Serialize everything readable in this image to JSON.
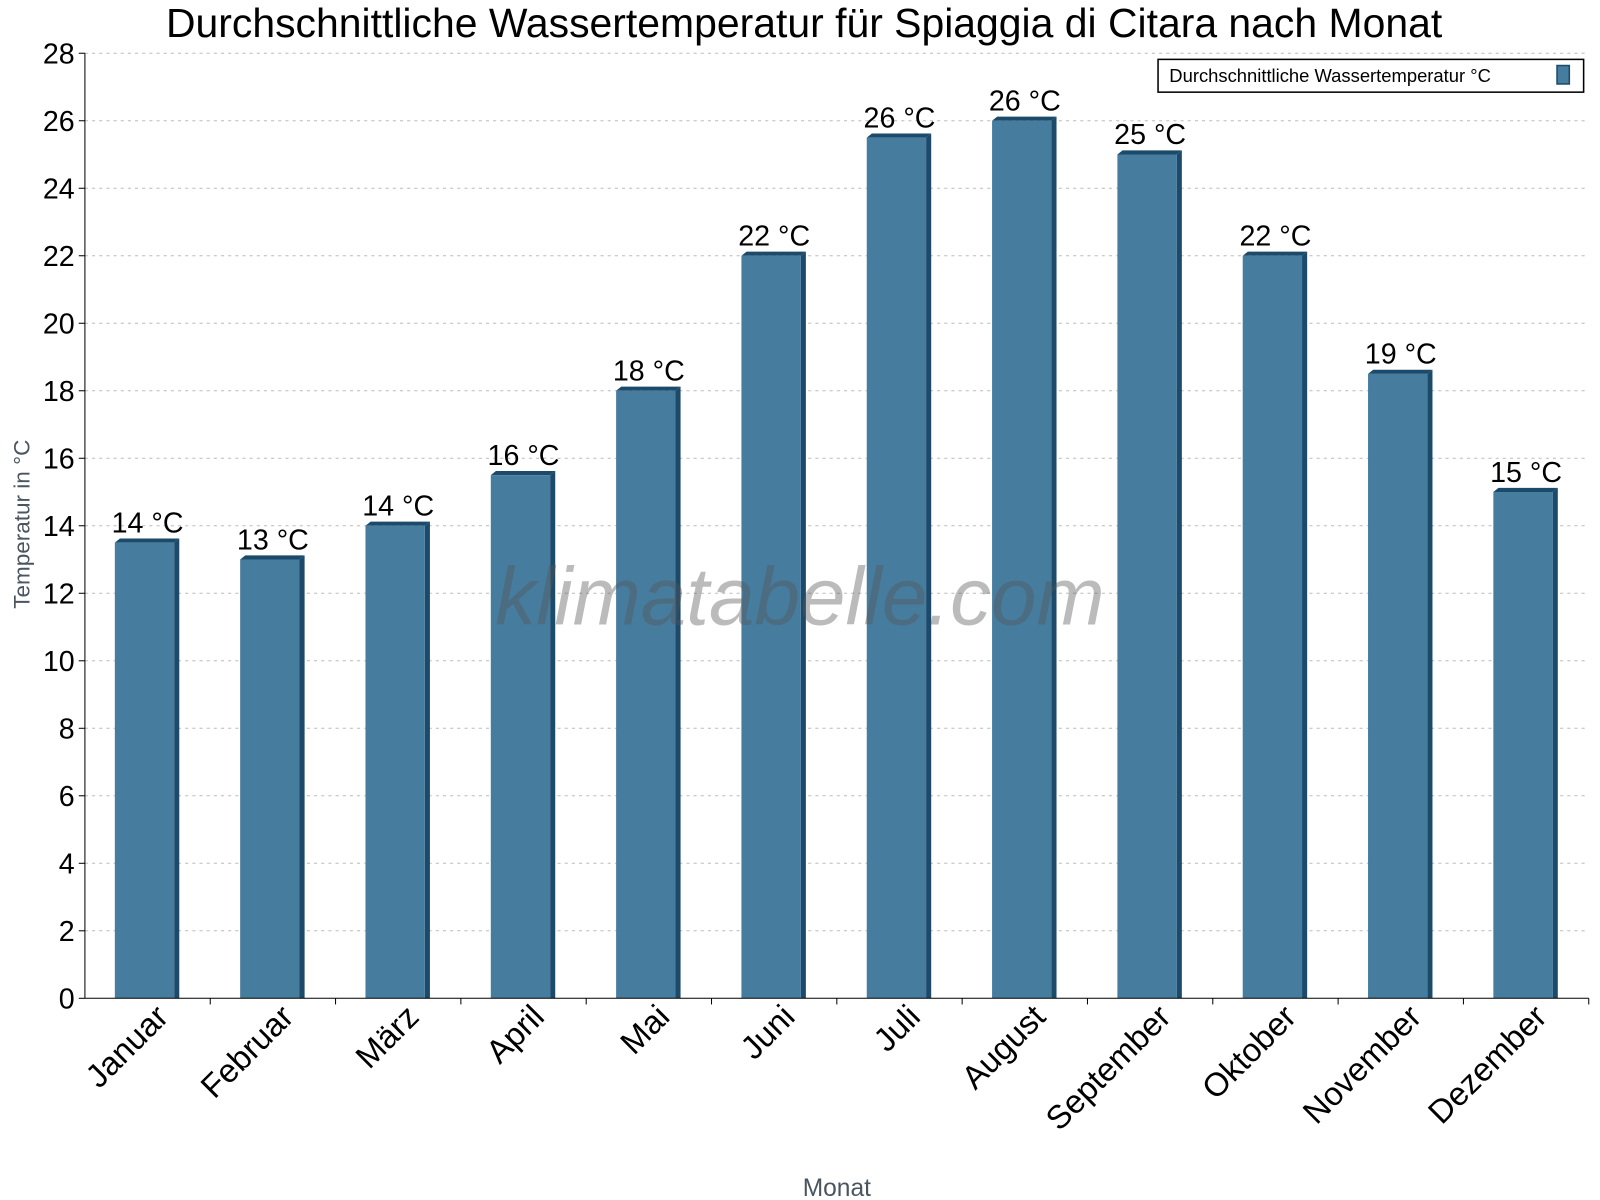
{
  "chart_data": {
    "type": "bar",
    "title": "Durchschnittliche Wassertemperatur für Spiaggia di Citara nach Monat",
    "xlabel": "Monat",
    "ylabel": "Temperatur in °C",
    "ylim": [
      0,
      28
    ],
    "yticks": [
      0,
      2,
      4,
      6,
      8,
      10,
      12,
      14,
      16,
      18,
      20,
      22,
      24,
      26,
      28
    ],
    "grid": true,
    "legend_position": "top-right",
    "categories": [
      "Januar",
      "Februar",
      "März",
      "April",
      "Mai",
      "Juni",
      "Juli",
      "August",
      "September",
      "Oktober",
      "November",
      "Dezember"
    ],
    "series": [
      {
        "name": "Durchschnittliche Wassertemperatur °C",
        "values": [
          13.5,
          13,
          14,
          15.5,
          18,
          22,
          25.5,
          26,
          25,
          22,
          18.5,
          15
        ],
        "labels": [
          "14 °C",
          "13 °C",
          "14 °C",
          "16 °C",
          "18 °C",
          "22 °C",
          "26 °C",
          "26 °C",
          "25 °C",
          "22 °C",
          "19 °C",
          "15 °C"
        ],
        "color": "#467c9e",
        "side_color": "#1b4a6b"
      }
    ],
    "watermark": "klimatabelle.com"
  }
}
